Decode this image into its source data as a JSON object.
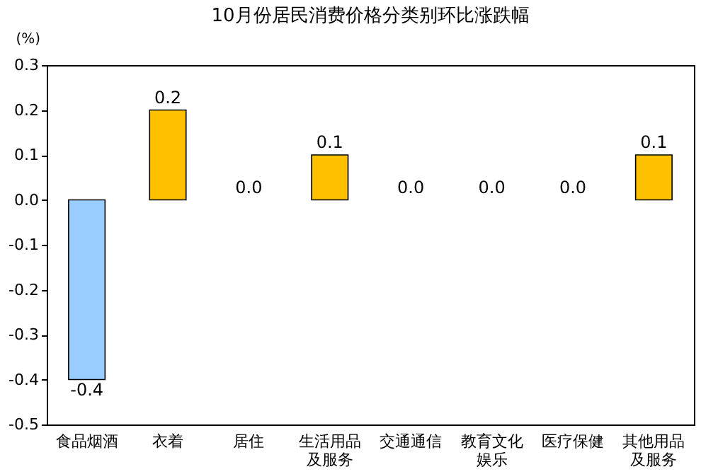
{
  "chart_data": {
    "type": "bar",
    "title": "10月份居民消费价格分类别环比涨跌幅",
    "ylabel": "(%)",
    "categories": [
      "食品烟酒",
      "衣着",
      "居住",
      "生活用品及服务",
      "交通通信",
      "教育文化娱乐",
      "医疗保健",
      "其他用品及服务"
    ],
    "values": [
      -0.4,
      0.2,
      0.0,
      0.1,
      0.0,
      0.0,
      0.0,
      0.1
    ],
    "colors": [
      "#99ccff",
      "#ffc000",
      "#ffc000",
      "#ffc000",
      "#ffc000",
      "#ffc000",
      "#ffc000",
      "#ffc000"
    ],
    "value_labels": [
      "-0.4",
      "0.2",
      "0.0",
      "0.1",
      "0.0",
      "0.0",
      "0.0",
      "0.1"
    ],
    "ylim": [
      -0.5,
      0.3
    ],
    "yticks": [
      0.3,
      0.2,
      0.1,
      {
        "value": 0,
        "label": "0.0"
      },
      -0.1,
      -0.2,
      -0.3,
      -0.4,
      -0.5
    ],
    "grid": false
  }
}
